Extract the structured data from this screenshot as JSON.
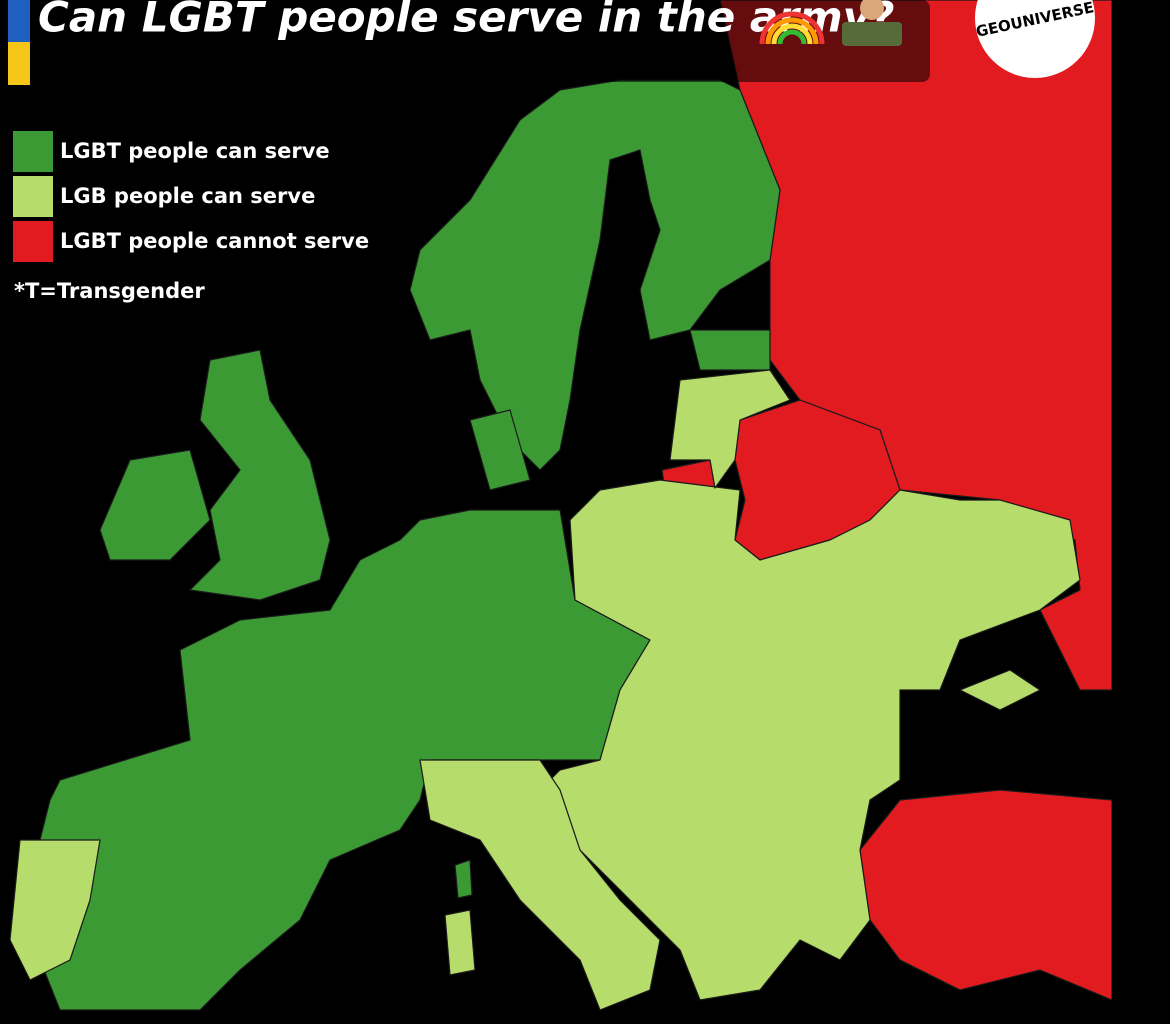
{
  "header": {
    "title": "Can LGBT people serve in the army?",
    "logo": "GEOUNIVERSE"
  },
  "legend": {
    "items": [
      {
        "label": "LGBT people can serve",
        "color": "#3c9a34"
      },
      {
        "label": "LGB people can serve",
        "color": "#b6dc6c"
      },
      {
        "label": "LGBT people cannot serve",
        "color": "#e11b1f"
      }
    ]
  },
  "note": "*T=Transgender"
}
